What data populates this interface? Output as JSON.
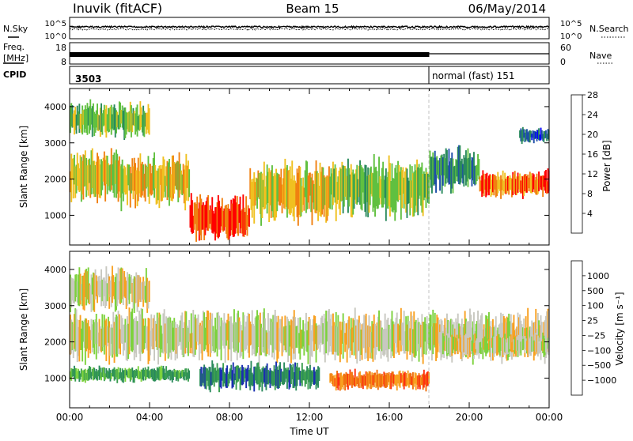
{
  "header": {
    "station": "Inuvik  (fitACF)",
    "beam": "Beam 15",
    "date": "06/May/2014"
  },
  "noise_panel": {
    "left_label": "N.Sky",
    "right_label": "N.Search",
    "left_ticks": [
      "10^5",
      "10^0"
    ],
    "right_ticks": [
      "10^5",
      "10^0"
    ]
  },
  "freq_panel": {
    "left_label_top": "Freq.",
    "left_label_bottom": "[MHz]",
    "right_label": "Nave",
    "left_ticks": [
      "18",
      "8"
    ],
    "right_ticks": [
      "60",
      "0"
    ]
  },
  "cpid_panel": {
    "label": "CPID",
    "segments": [
      {
        "start_hour": 0,
        "text": "3503"
      },
      {
        "start_hour": 18,
        "text": "normal (fast) 151"
      }
    ]
  },
  "chart_data": [
    {
      "type": "heatmap",
      "name": "power",
      "ylabel": "Slant Range [km]",
      "xlabel": "",
      "ylim": [
        180,
        4500
      ],
      "y_ticks": [
        1000,
        2000,
        3000,
        4000
      ],
      "colorbar_label": "Power [dB]",
      "colorbar_ticks": [
        "4",
        "8",
        "12",
        "16",
        "20",
        "24",
        "28"
      ],
      "colors": [
        "#0000ff",
        "#1f4fa8",
        "#2a8a5c",
        "#60c040",
        "#f0c020",
        "#f08010",
        "#ff0000"
      ],
      "features": [
        {
          "t_start": 0.0,
          "t_end": 2.5,
          "r_min": 1400,
          "r_max": 2800,
          "level": 4
        },
        {
          "t_start": 2.5,
          "t_end": 6.0,
          "r_min": 1300,
          "r_max": 2600,
          "level": 4
        },
        {
          "t_start": 6.0,
          "t_end": 9.0,
          "r_min": 300,
          "r_max": 1500,
          "level": 6
        },
        {
          "t_start": 9.0,
          "t_end": 13.0,
          "r_min": 900,
          "r_max": 2400,
          "level": 4
        },
        {
          "t_start": 13.0,
          "t_end": 18.0,
          "r_min": 1000,
          "r_max": 2500,
          "level": 3
        },
        {
          "t_start": 18.0,
          "t_end": 20.5,
          "r_min": 1700,
          "r_max": 2800,
          "level": 2
        },
        {
          "t_start": 20.5,
          "t_end": 24.0,
          "r_min": 1500,
          "r_max": 2200,
          "level": 5
        },
        {
          "t_start": 0.0,
          "t_end": 4.0,
          "r_min": 3200,
          "r_max": 4100,
          "level": 3
        },
        {
          "t_start": 22.5,
          "t_end": 24.0,
          "r_min": 3000,
          "r_max": 3400,
          "level": 1
        }
      ]
    },
    {
      "type": "heatmap",
      "name": "velocity",
      "ylabel": "Slant Range [km]",
      "xlabel": "Time UT",
      "ylim": [
        180,
        4500
      ],
      "y_ticks": [
        1000,
        2000,
        3000,
        4000
      ],
      "x_ticks": [
        "00:00",
        "04:00",
        "08:00",
        "12:00",
        "16:00",
        "20:00",
        "00:00"
      ],
      "x_tick_hours": [
        0,
        4,
        8,
        12,
        16,
        20,
        24
      ],
      "colorbar_label": "Velocity [m s⁻¹]",
      "colorbar_ticks": [
        "1000",
        "500",
        "100",
        "25",
        "−25",
        "−100",
        "−500",
        "−1000"
      ],
      "colors": [
        "#1a2fb0",
        "#2a8a5c",
        "#3a9e50",
        "#7cd23c",
        "#c8c8c0",
        "#f8a020",
        "#f07010",
        "#ff3010",
        "#ff0000"
      ],
      "features": [
        {
          "t_start": 0.0,
          "t_end": 24.0,
          "r_min": 1500,
          "r_max": 2800,
          "level": 4
        },
        {
          "t_start": 0.0,
          "t_end": 4.0,
          "r_min": 2900,
          "r_max": 4000,
          "level": 4
        },
        {
          "t_start": 6.5,
          "t_end": 12.5,
          "r_min": 700,
          "r_max": 1400,
          "level": 1
        },
        {
          "t_start": 13.0,
          "t_end": 18.0,
          "r_min": 700,
          "r_max": 1200,
          "level": 6
        },
        {
          "t_start": 0.0,
          "t_end": 6.0,
          "r_min": 900,
          "r_max": 1300,
          "level": 2
        },
        {
          "t_start": 18.5,
          "t_end": 24.0,
          "r_min": 1600,
          "r_max": 2200,
          "level": 4
        }
      ]
    }
  ]
}
